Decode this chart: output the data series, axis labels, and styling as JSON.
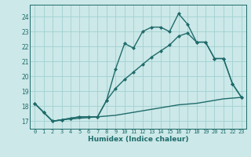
{
  "xlabel": "Humidex (Indice chaleur)",
  "bg_color": "#cce8e8",
  "grid_color": "#99cccc",
  "line_color": "#1f6b6b",
  "xlim": [
    -0.5,
    23.5
  ],
  "ylim": [
    16.5,
    24.8
  ],
  "xticks": [
    0,
    1,
    2,
    3,
    4,
    5,
    6,
    7,
    8,
    9,
    10,
    11,
    12,
    13,
    14,
    15,
    16,
    17,
    18,
    19,
    20,
    21,
    22,
    23
  ],
  "yticks": [
    17,
    18,
    19,
    20,
    21,
    22,
    23,
    24
  ],
  "wavy_x": [
    0,
    1,
    2,
    3,
    4,
    5,
    6,
    7,
    8,
    9,
    10,
    11,
    12,
    13,
    14,
    15,
    16,
    17,
    18,
    19,
    20,
    21,
    22,
    23
  ],
  "wavy_y": [
    18.2,
    17.6,
    17.0,
    17.1,
    17.2,
    17.3,
    17.3,
    17.3,
    18.4,
    20.5,
    22.2,
    21.9,
    23.0,
    23.3,
    23.3,
    23.0,
    24.2,
    23.5,
    22.3,
    22.3,
    21.2,
    21.2,
    19.5,
    18.6
  ],
  "linear_x": [
    0,
    1,
    2,
    3,
    4,
    5,
    6,
    7,
    8,
    9,
    10,
    11,
    12,
    13,
    14,
    15,
    16,
    17,
    18,
    19,
    20,
    21,
    22,
    23
  ],
  "linear_y": [
    18.2,
    17.6,
    17.0,
    17.1,
    17.2,
    17.3,
    17.3,
    17.3,
    18.4,
    19.2,
    19.8,
    20.3,
    20.8,
    21.3,
    21.7,
    22.1,
    22.7,
    22.9,
    22.3,
    22.3,
    21.2,
    21.2,
    19.5,
    18.6
  ],
  "flat_x": [
    0,
    1,
    2,
    3,
    4,
    5,
    6,
    7,
    8,
    9,
    10,
    11,
    12,
    13,
    14,
    15,
    16,
    17,
    18,
    19,
    20,
    21,
    22,
    23
  ],
  "flat_y": [
    18.2,
    17.6,
    17.0,
    17.1,
    17.15,
    17.2,
    17.25,
    17.3,
    17.35,
    17.4,
    17.5,
    17.6,
    17.7,
    17.8,
    17.9,
    18.0,
    18.1,
    18.15,
    18.2,
    18.3,
    18.4,
    18.5,
    18.55,
    18.6
  ],
  "marker_size": 2.5,
  "line_width": 1.0
}
